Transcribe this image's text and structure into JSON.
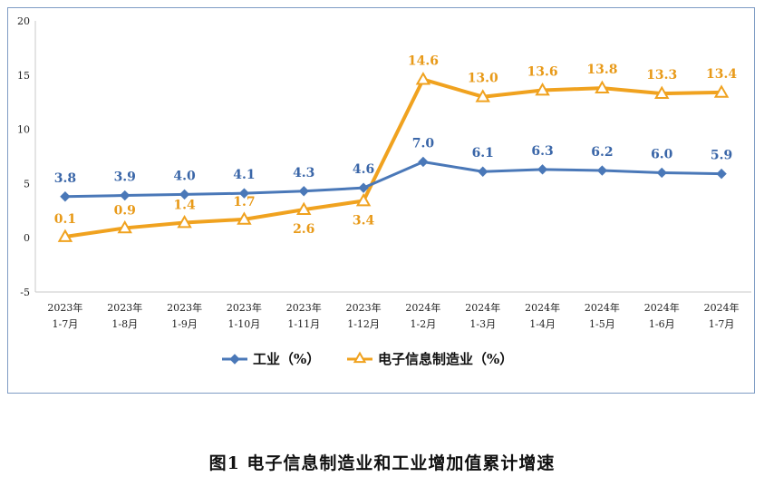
{
  "chart_data": {
    "type": "line",
    "categories": [
      [
        "2023年",
        "1-7月"
      ],
      [
        "2023年",
        "1-8月"
      ],
      [
        "2023年",
        "1-9月"
      ],
      [
        "2023年",
        "1-10月"
      ],
      [
        "2023年",
        "1-11月"
      ],
      [
        "2023年",
        "1-12月"
      ],
      [
        "2024年",
        "1-2月"
      ],
      [
        "2024年",
        "1-3月"
      ],
      [
        "2024年",
        "1-4月"
      ],
      [
        "2024年",
        "1-5月"
      ],
      [
        "2024年",
        "1-6月"
      ],
      [
        "2024年",
        "1-7月"
      ]
    ],
    "series": [
      {
        "name": "工业（%）",
        "color": "#4a78b8",
        "marker": "diamond",
        "values": [
          3.8,
          3.9,
          4.0,
          4.1,
          4.3,
          4.6,
          7.0,
          6.1,
          6.3,
          6.2,
          6.0,
          5.9
        ],
        "labels": [
          "3.8",
          "3.9",
          "4.0",
          "4.1",
          "4.3",
          "4.6",
          "7.0",
          "6.1",
          "6.3",
          "6.2",
          "6.0",
          "5.9"
        ]
      },
      {
        "name": "电子信息制造业（%）",
        "color": "#f0a21f",
        "marker": "triangle",
        "values": [
          0.1,
          0.9,
          1.4,
          1.7,
          2.6,
          3.4,
          14.6,
          13.0,
          13.6,
          13.8,
          13.3,
          13.4
        ],
        "labels": [
          "0.1",
          "0.9",
          "1.4",
          "1.7",
          "2.6",
          "3.4",
          "14.6",
          "13.0",
          "13.6",
          "13.8",
          "13.3",
          "13.4"
        ]
      }
    ],
    "yticks": [
      "20",
      "15",
      "10",
      "5",
      "0",
      "-5"
    ],
    "ylim": [
      -5,
      20
    ],
    "legend_position": "bottom-center",
    "title": "图1  电子信息制造业和工业增加值累计增速"
  }
}
